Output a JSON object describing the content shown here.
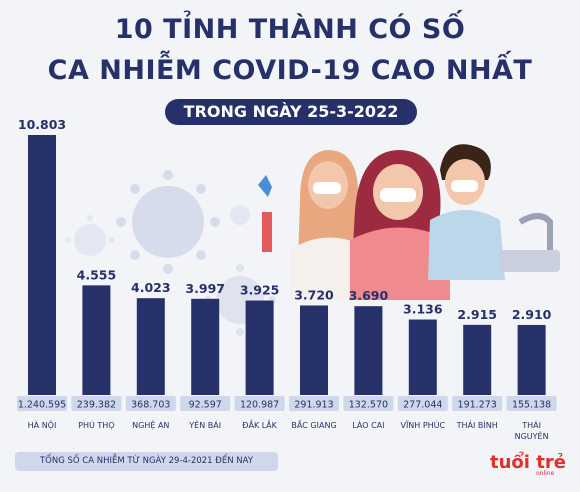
{
  "title_line1": "10 TỈNH THÀNH CÓ SỐ",
  "title_line2": "CA NHIỄM COVID-19 CAO NHẤT",
  "subtitle": "TRONG NGÀY 25-3-2022",
  "legend_note": "TỔNG SỐ CA NHIỄM TỪ NGÀY 29-4-2021 ĐẾN NAY",
  "logo_text": "tuổi trẻ",
  "logo_sub": "online",
  "colors": {
    "bar": "#26316a",
    "title": "#26316a",
    "total_box_bg": "#cfd7ea",
    "logo": "#e0302b",
    "virus": "#d7dced"
  },
  "chart_data": {
    "type": "bar",
    "categories": [
      "HÀ NỘI",
      "PHÚ THỌ",
      "NGHỆ AN",
      "YÊN BÁI",
      "ĐẮK LẮK",
      "BẮC GIANG",
      "LÀO CAI",
      "VĨNH PHÚC",
      "THÁI BÌNH",
      "THÁI NGUYÊN"
    ],
    "values": [
      10803,
      4555,
      4023,
      3997,
      3925,
      3720,
      3690,
      3136,
      2915,
      2910
    ],
    "value_labels": [
      "10.803",
      "4.555",
      "4.023",
      "3.997",
      "3.925",
      "3.720",
      "3.690",
      "3.136",
      "2.915",
      "2.910"
    ],
    "totals": [
      "1.240.595",
      "239.382",
      "368.703",
      "92.597",
      "120.987",
      "291.913",
      "132.570",
      "277.044",
      "191.273",
      "155.138"
    ],
    "ylim": [
      0,
      10803
    ],
    "grid": false
  }
}
